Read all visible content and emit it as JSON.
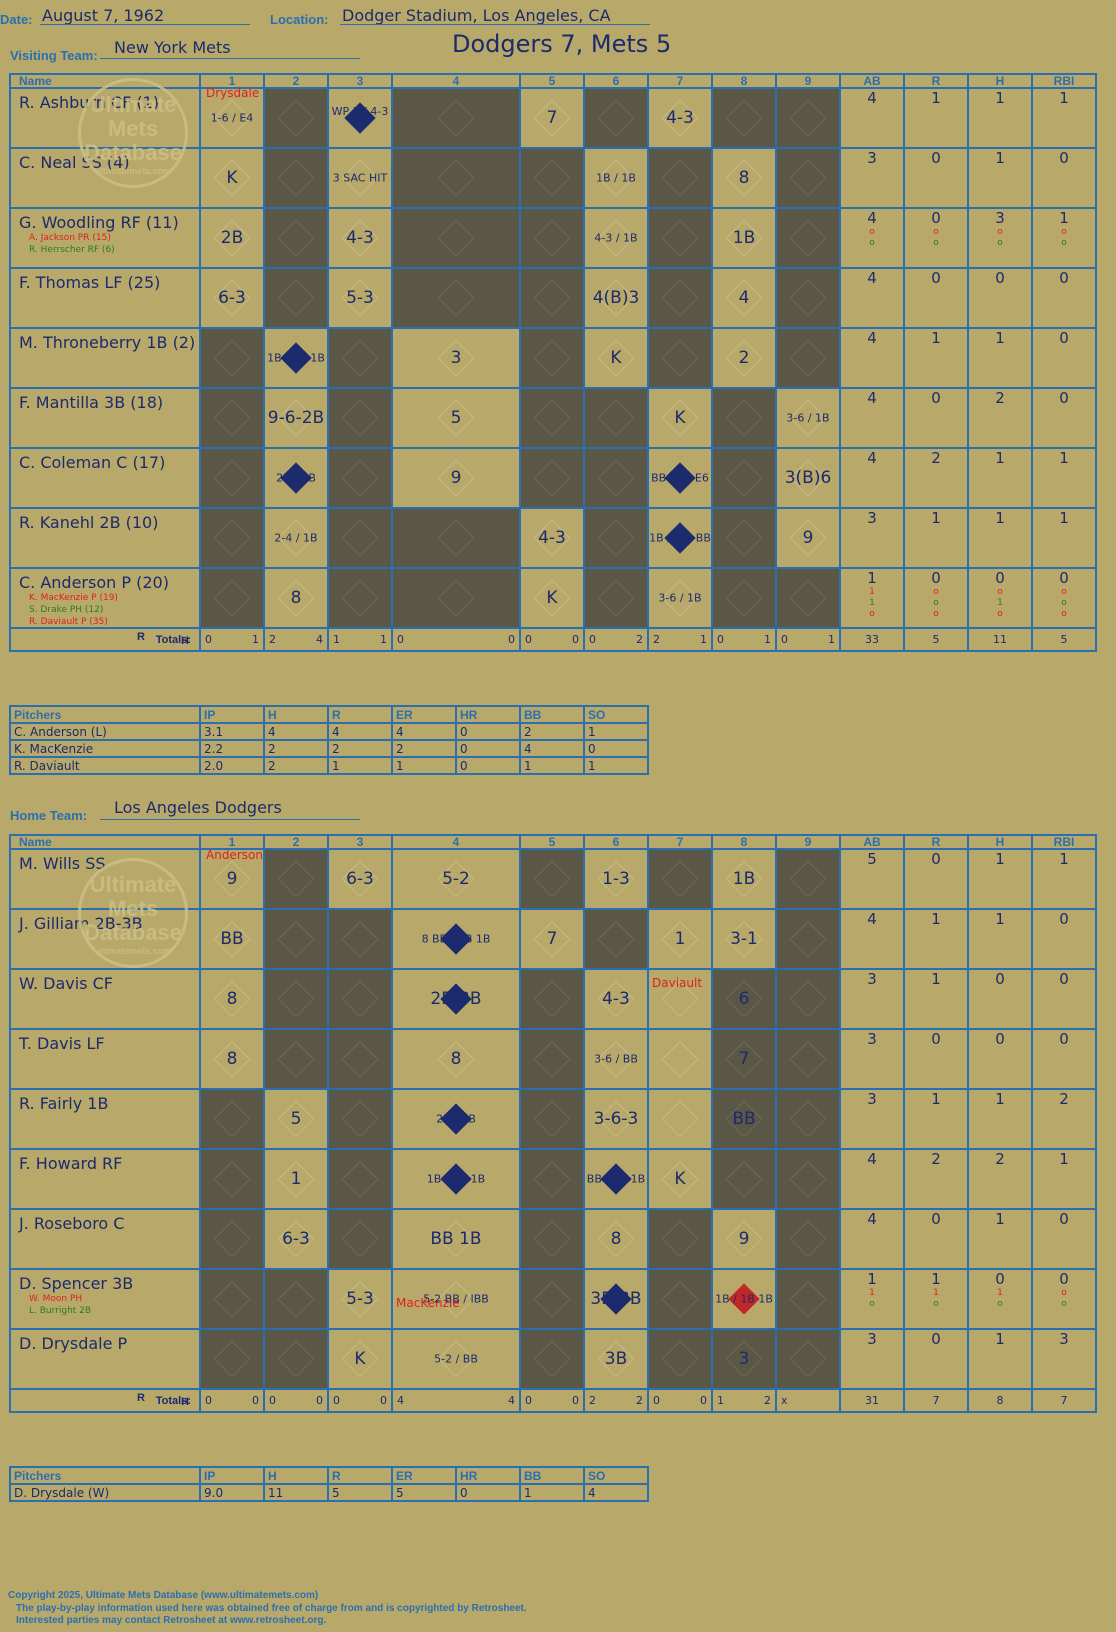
{
  "header": {
    "date_label": "Date:",
    "date_value": "August 7, 1962",
    "location_label": "Location:",
    "location_value": "Dodger Stadium, Los Angeles, CA",
    "game_title": "Dodgers 7, Mets 5",
    "visiting_label": "Visiting Team:",
    "visiting_value": "New York Mets",
    "home_label": "Home Team:",
    "home_value": "Los Angeles Dodgers"
  },
  "grid_headers": {
    "name": "Name",
    "innings": [
      "1",
      "2",
      "3",
      "4",
      "5",
      "6",
      "7",
      "8",
      "9"
    ],
    "stats": [
      "AB",
      "R",
      "H",
      "RBI"
    ],
    "totals": "Totals:",
    "r": "R",
    "h": "H"
  },
  "watermark": {
    "line1": "Ultimate",
    "line2": "Mets",
    "line3": "Database",
    "url": "ultimatemets.com"
  },
  "visitors": {
    "opposing_pitcher": "Drysdale",
    "rows": [
      {
        "name": "R. Ashburn CF (1)",
        "subs": [],
        "ab": "4",
        "r": "1",
        "h": "1",
        "rbi": "1",
        "sub_stats": []
      },
      {
        "name": "C. Neal SS (4)",
        "subs": [],
        "ab": "3",
        "r": "0",
        "h": "1",
        "rbi": "0",
        "sub_stats": []
      },
      {
        "name": "G. Woodling RF (11)",
        "subs": [
          "A. Jackson PR (15)",
          "R. Herrscher RF (6)"
        ],
        "ab": "4",
        "r": "0",
        "h": "3",
        "rbi": "1",
        "sub_stats": [
          [
            "o",
            "o",
            "o",
            "o"
          ],
          [
            "o",
            "o",
            "o",
            "o"
          ]
        ]
      },
      {
        "name": "F. Thomas LF (25)",
        "subs": [],
        "ab": "4",
        "r": "0",
        "h": "0",
        "rbi": "0",
        "sub_stats": []
      },
      {
        "name": "M. Throneberry 1B (2)",
        "subs": [],
        "ab": "4",
        "r": "1",
        "h": "1",
        "rbi": "0",
        "sub_stats": []
      },
      {
        "name": "F. Mantilla 3B (18)",
        "subs": [],
        "ab": "4",
        "r": "0",
        "h": "2",
        "rbi": "0",
        "sub_stats": []
      },
      {
        "name": "C. Coleman C (17)",
        "subs": [],
        "ab": "4",
        "r": "2",
        "h": "1",
        "rbi": "1",
        "sub_stats": []
      },
      {
        "name": "R. Kanehl 2B (10)",
        "subs": [],
        "ab": "3",
        "r": "1",
        "h": "1",
        "rbi": "1",
        "sub_stats": []
      },
      {
        "name": "C. Anderson P (20)",
        "subs": [
          "K. MacKenzie P (19)",
          "S. Drake PH (12)",
          "R. Daviault P (35)"
        ],
        "ab": "1",
        "r": "0",
        "h": "0",
        "rbi": "0",
        "sub_stats": [
          [
            "1",
            "o",
            "o",
            "o"
          ],
          [
            "1",
            "o",
            "1",
            "o"
          ],
          [
            "o",
            "o",
            "o",
            "o"
          ]
        ]
      }
    ],
    "cells": [
      [
        "1-6 / E4",
        "",
        "WP 3 / 4-3 1B",
        "",
        "7",
        "",
        "4-3",
        "",
        ""
      ],
      [
        "K",
        "",
        "3 SAC HIT",
        "",
        "",
        "1B / 1B",
        "",
        "8",
        ""
      ],
      [
        "2B",
        "",
        "4-3",
        "",
        "",
        "4-3 / 1B",
        "",
        "1B",
        ""
      ],
      [
        "6-3",
        "",
        "5-3",
        "",
        "",
        "4(B)3",
        "",
        "4",
        ""
      ],
      [
        "",
        "1B / 2B 1B",
        "",
        "3",
        "",
        "K",
        "",
        "2",
        ""
      ],
      [
        "",
        "9-6-2B",
        "",
        "5",
        "",
        "",
        "K",
        "",
        "3-6 / 1B"
      ],
      [
        "",
        "2B / 1B",
        "",
        "9",
        "",
        "",
        "BB / 1B E6",
        "",
        "3(B)6"
      ],
      [
        "",
        "2-4 / 1B",
        "",
        "",
        "4-3",
        "",
        "1B / 4-3 BB",
        "",
        "9"
      ],
      [
        "",
        "8",
        "",
        "",
        "K",
        "",
        "3-6 / 1B",
        "",
        ""
      ]
    ],
    "totals": [
      [
        "0",
        "1"
      ],
      [
        "2",
        "4"
      ],
      [
        "1",
        "1"
      ],
      [
        "0",
        "0"
      ],
      [
        "0",
        "0"
      ],
      [
        "0",
        "2"
      ],
      [
        "2",
        "1"
      ],
      [
        "0",
        "1"
      ],
      [
        "0",
        "1"
      ]
    ],
    "totals_stats": [
      "33",
      "5",
      "11",
      "5"
    ],
    "pitchers_header": [
      "Pitchers",
      "IP",
      "H",
      "R",
      "ER",
      "HR",
      "BB",
      "SO"
    ],
    "pitchers": [
      [
        "C. Anderson (L)",
        "3.1",
        "4",
        "4",
        "4",
        "0",
        "2",
        "1"
      ],
      [
        "K. MacKenzie",
        "2.2",
        "2",
        "2",
        "2",
        "0",
        "4",
        "0"
      ],
      [
        "R. Daviault",
        "2.0",
        "2",
        "1",
        "1",
        "0",
        "1",
        "1"
      ]
    ]
  },
  "home": {
    "opposing_pitcher": "Anderson",
    "mackenzie_note": "MacKenzie",
    "daviault_note": "Daviault",
    "rows": [
      {
        "name": "M. Wills SS",
        "subs": [],
        "ab": "5",
        "r": "0",
        "h": "1",
        "rbi": "1",
        "sub_stats": []
      },
      {
        "name": "J. Gilliam 2B-3B",
        "subs": [],
        "ab": "4",
        "r": "1",
        "h": "1",
        "rbi": "0",
        "sub_stats": []
      },
      {
        "name": "W. Davis CF",
        "subs": [],
        "ab": "3",
        "r": "1",
        "h": "0",
        "rbi": "0",
        "sub_stats": []
      },
      {
        "name": "T. Davis LF",
        "subs": [],
        "ab": "3",
        "r": "0",
        "h": "0",
        "rbi": "0",
        "sub_stats": []
      },
      {
        "name": "R. Fairly 1B",
        "subs": [],
        "ab": "3",
        "r": "1",
        "h": "1",
        "rbi": "2",
        "sub_stats": []
      },
      {
        "name": "F. Howard RF",
        "subs": [],
        "ab": "4",
        "r": "2",
        "h": "2",
        "rbi": "1",
        "sub_stats": []
      },
      {
        "name": "J. Roseboro C",
        "subs": [],
        "ab": "4",
        "r": "0",
        "h": "1",
        "rbi": "0",
        "sub_stats": []
      },
      {
        "name": "D. Spencer 3B",
        "subs": [
          "W. Moon PH",
          "L. Burright 2B"
        ],
        "ab": "1",
        "r": "1",
        "h": "0",
        "rbi": "0",
        "sub_stats": [
          [
            "1",
            "1",
            "1",
            "o"
          ],
          [
            "o",
            "o",
            "o",
            "o"
          ]
        ]
      },
      {
        "name": "D. Drysdale P",
        "subs": [],
        "ab": "3",
        "r": "0",
        "h": "1",
        "rbi": "3",
        "sub_stats": []
      }
    ],
    "cells": [
      [
        "9",
        "",
        "6-3",
        "5-2",
        "",
        "1-3",
        "",
        "1B",
        ""
      ],
      [
        "BB",
        "",
        "",
        "8 BB / 2B 1B",
        "7",
        "",
        "1",
        "3-1",
        ""
      ],
      [
        "8",
        "",
        "",
        "2B BB",
        "",
        "4-3",
        "",
        "6",
        ""
      ],
      [
        "8",
        "",
        "",
        "8",
        "",
        "3-6 / BB",
        "",
        "7",
        ""
      ],
      [
        "",
        "5",
        "",
        "2B / 1B",
        "",
        "3-6-3",
        "",
        "BB",
        ""
      ],
      [
        "",
        "1",
        "",
        "1B / BB 1B",
        "",
        "BB / 3B 1B",
        "K",
        "",
        ""
      ],
      [
        "",
        "6-3",
        "",
        "BB 1B",
        "",
        "8",
        "",
        "9",
        ""
      ],
      [
        "",
        "",
        "5-3",
        "5-2 BB / IBB",
        "",
        "3B BB",
        "",
        "1B / 1B 1B",
        ""
      ],
      [
        "",
        "",
        "K",
        "5-2 / BB",
        "",
        "3B",
        "",
        "3",
        ""
      ]
    ],
    "totals": [
      [
        "0",
        "0"
      ],
      [
        "0",
        "0"
      ],
      [
        "0",
        "0"
      ],
      [
        "4",
        "4"
      ],
      [
        "0",
        "0"
      ],
      [
        "2",
        "2"
      ],
      [
        "0",
        "0"
      ],
      [
        "1",
        "2"
      ],
      [
        "x",
        ""
      ]
    ],
    "totals_stats": [
      "31",
      "7",
      "8",
      "7"
    ],
    "pitchers_header": [
      "Pitchers",
      "IP",
      "H",
      "R",
      "ER",
      "HR",
      "BB",
      "SO"
    ],
    "pitchers": [
      [
        "D. Drysdale (W)",
        "9.0",
        "11",
        "5",
        "5",
        "0",
        "1",
        "4"
      ]
    ]
  },
  "footer": {
    "line1": "Copyright 2025, Ultimate Mets Database (www.ultimatemets.com)",
    "line2": "The play-by-play information used here was obtained free of charge from and is copyrighted by Retrosheet.",
    "line3": "Interested parties may contact Retrosheet at www.retrosheet.org."
  },
  "colors": {
    "paper": "#b8a96a",
    "grid": "#2a6fb0",
    "dark": "#5b5746",
    "ink": "#1c2a6e",
    "run_diamond": "#1c2a6e",
    "red": "#e02020",
    "green": "#2a7a2a"
  }
}
